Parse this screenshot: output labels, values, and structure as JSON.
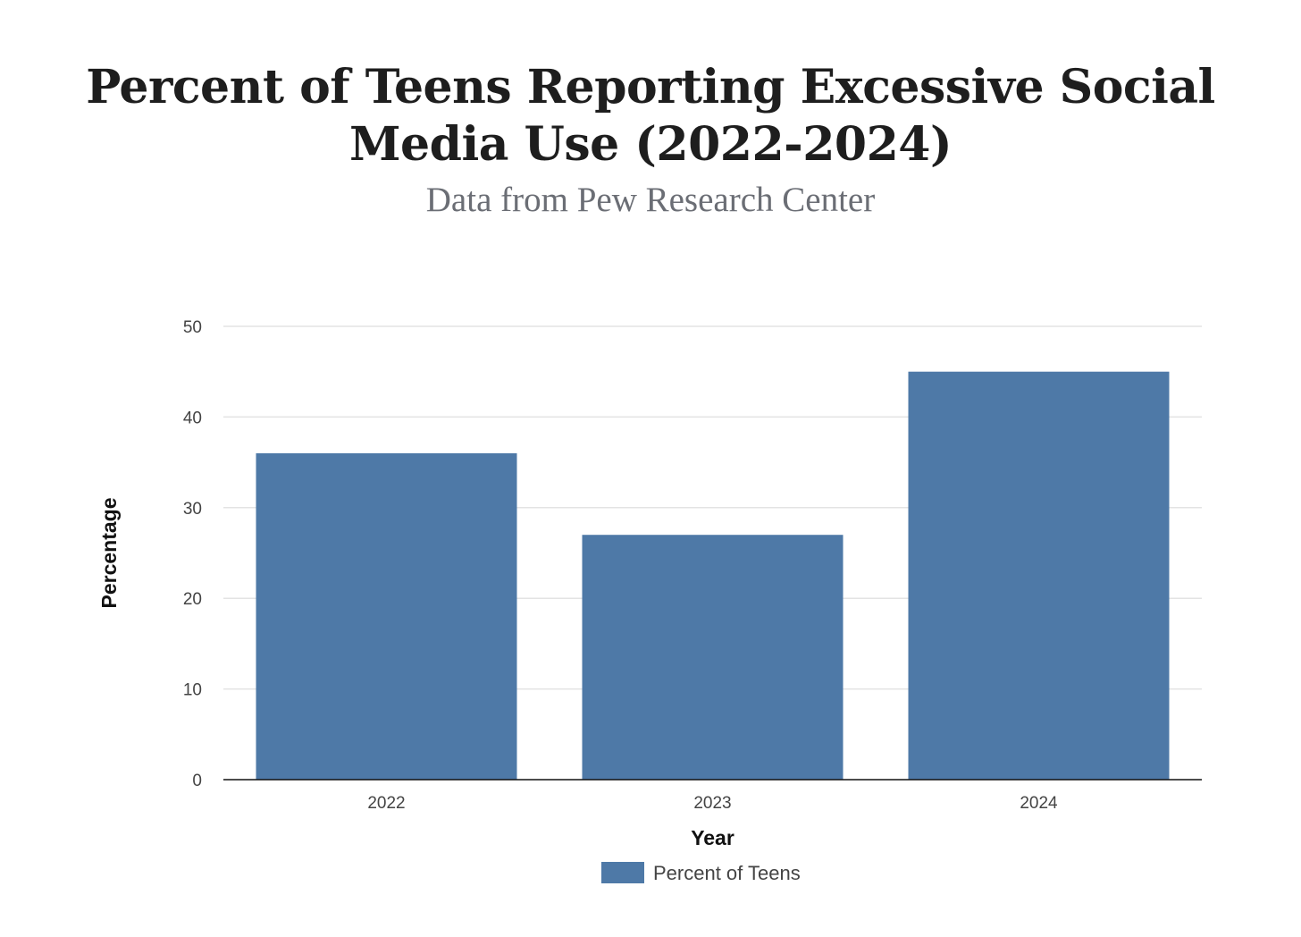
{
  "chart_data": {
    "type": "bar",
    "title": "Percent of Teens Reporting Excessive Social Media Use (2022-2024)",
    "subtitle": "Data from Pew Research Center",
    "categories": [
      "2022",
      "2023",
      "2024"
    ],
    "series": [
      {
        "name": "Percent of Teens",
        "values": [
          36,
          27,
          45
        ],
        "color": "#4e79a7"
      }
    ],
    "xlabel": "Year",
    "ylabel": "Percentage",
    "ylim": [
      0,
      50
    ],
    "yticks": [
      0,
      10,
      20,
      30,
      40,
      50
    ],
    "grid": true,
    "legend_position": "bottom"
  }
}
